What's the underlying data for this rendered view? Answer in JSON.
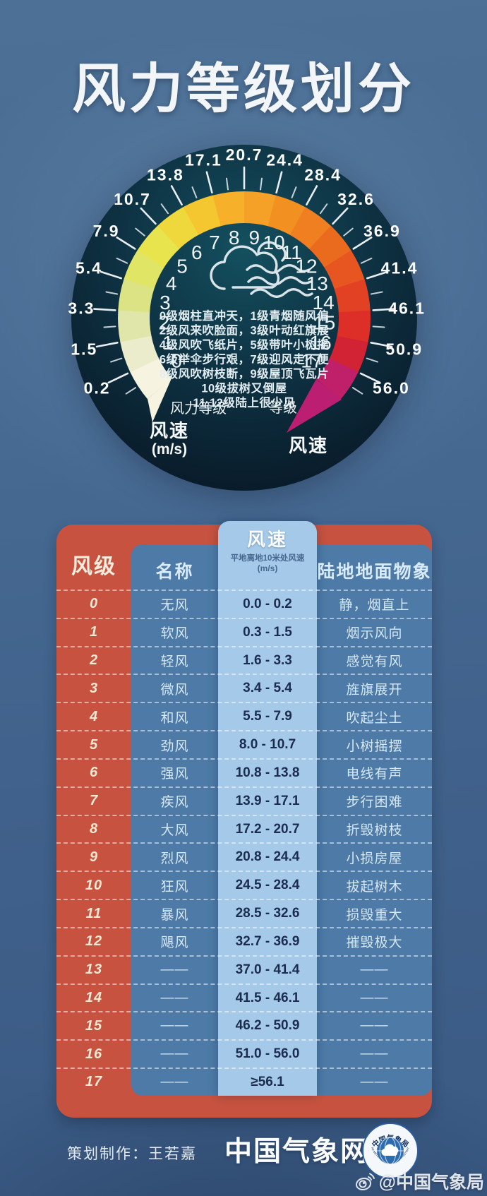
{
  "title": "风力等级划分",
  "gauge": {
    "speed_tick_labels": [
      "0.2",
      "1.5",
      "3.3",
      "5.4",
      "7.9",
      "10.7",
      "13.8",
      "17.1",
      "20.7",
      "24.4",
      "28.4",
      "32.6",
      "36.9",
      "41.4",
      "46.1",
      "50.9",
      "56.0"
    ],
    "level_labels": [
      "0",
      "1",
      "2",
      "3",
      "4",
      "5",
      "6",
      "7",
      "8",
      "9",
      "10",
      "11",
      "12",
      "13",
      "14",
      "15",
      "16",
      "17"
    ],
    "segment_colors": [
      "#f7f3e1",
      "#ebeccc",
      "#e0e5a9",
      "#dce384",
      "#e0e566",
      "#e8e44e",
      "#efd83c",
      "#f4c730",
      "#f6b02a",
      "#f5a026",
      "#f29122",
      "#ef7f20",
      "#eb6b1e",
      "#e75520",
      "#e24124",
      "#dd2f28",
      "#d22335",
      "#c02069"
    ],
    "arrow_color": "#bc1f72",
    "rhyme_lines": [
      "0级烟柱直冲天，1级青烟随风偏",
      "2级风来吹脸面，3级叶动红旗展",
      "4级风吹飞纸片，5级带叶小树摇",
      "6级举伞步行艰，7级迎风走不便",
      "8级风吹树枝断，9级屋顶飞瓦片",
      "10级拔树又倒屋",
      "11,12级陆上很少见"
    ],
    "inner_scale_label": "风力等级",
    "outer_scale_label": "风速",
    "outer_scale_unit": "(m/s)",
    "right_inner_label": "等级",
    "right_outer_label": "风速"
  },
  "table": {
    "header": {
      "level": "风级",
      "name": "名称",
      "speed": "风速",
      "speed_sub": "平地离地10米处风速",
      "speed_unit": "(m/s)",
      "phenomena": "陆地地面物象"
    },
    "rows": [
      {
        "level": "0",
        "name": "无风",
        "speed": "0.0 - 0.2",
        "phenomena": "静，烟直上"
      },
      {
        "level": "1",
        "name": "软风",
        "speed": "0.3 - 1.5",
        "phenomena": "烟示风向"
      },
      {
        "level": "2",
        "name": "轻风",
        "speed": "1.6 - 3.3",
        "phenomena": "感觉有风"
      },
      {
        "level": "3",
        "name": "微风",
        "speed": "3.4 - 5.4",
        "phenomena": "旌旗展开"
      },
      {
        "level": "4",
        "name": "和风",
        "speed": "5.5 - 7.9",
        "phenomena": "吹起尘土"
      },
      {
        "level": "5",
        "name": "劲风",
        "speed": "8.0 - 10.7",
        "phenomena": "小树摇摆"
      },
      {
        "level": "6",
        "name": "强风",
        "speed": "10.8 - 13.8",
        "phenomena": "电线有声"
      },
      {
        "level": "7",
        "name": "疾风",
        "speed": "13.9 - 17.1",
        "phenomena": "步行困难"
      },
      {
        "level": "8",
        "name": "大风",
        "speed": "17.2 - 20.7",
        "phenomena": "折毁树枝"
      },
      {
        "level": "9",
        "name": "烈风",
        "speed": "20.8 - 24.4",
        "phenomena": "小损房屋"
      },
      {
        "level": "10",
        "name": "狂风",
        "speed": "24.5 - 28.4",
        "phenomena": "拔起树木"
      },
      {
        "level": "11",
        "name": "暴风",
        "speed": "28.5 - 32.6",
        "phenomena": "损毁重大"
      },
      {
        "level": "12",
        "name": "飓风",
        "speed": "32.7 - 36.9",
        "phenomena": "摧毁极大"
      },
      {
        "level": "13",
        "name": "——",
        "speed": "37.0 - 41.4",
        "phenomena": "——"
      },
      {
        "level": "14",
        "name": "——",
        "speed": "41.5 - 46.1",
        "phenomena": "——"
      },
      {
        "level": "15",
        "name": "——",
        "speed": "46.2 - 50.9",
        "phenomena": "——"
      },
      {
        "level": "16",
        "name": "——",
        "speed": "51.0 - 56.0",
        "phenomena": "——"
      },
      {
        "level": "17",
        "name": "——",
        "speed": "≥56.1",
        "phenomena": "——"
      }
    ]
  },
  "footer": {
    "credit": "策划制作：王若嘉",
    "brand": "中国气象网",
    "logo_ring_top": "中国气象局",
    "logo_ring_bottom": "CHINA METEOROLOGICAL ADMINISTRATION",
    "watermark": "@中国气象局"
  },
  "chart_data": {
    "type": "table",
    "title": "风力等级划分",
    "columns": [
      "风级",
      "名称",
      "风速 平地离地10米处风速(m/s)",
      "陆地地面物象"
    ],
    "rows": [
      [
        "0",
        "无风",
        "0.0 - 0.2",
        "静，烟直上"
      ],
      [
        "1",
        "软风",
        "0.3 - 1.5",
        "烟示风向"
      ],
      [
        "2",
        "轻风",
        "1.6 - 3.3",
        "感觉有风"
      ],
      [
        "3",
        "微风",
        "3.4 - 5.4",
        "旌旗展开"
      ],
      [
        "4",
        "和风",
        "5.5 - 7.9",
        "吹起尘土"
      ],
      [
        "5",
        "劲风",
        "8.0 - 10.7",
        "小树摇摆"
      ],
      [
        "6",
        "强风",
        "10.8 - 13.8",
        "电线有声"
      ],
      [
        "7",
        "疾风",
        "13.9 - 17.1",
        "步行困难"
      ],
      [
        "8",
        "大风",
        "17.2 - 20.7",
        "折毁树枝"
      ],
      [
        "9",
        "烈风",
        "20.8 - 24.4",
        "小损房屋"
      ],
      [
        "10",
        "狂风",
        "24.5 - 28.4",
        "拔起树木"
      ],
      [
        "11",
        "暴风",
        "28.5 - 32.6",
        "损毁重大"
      ],
      [
        "12",
        "飓风",
        "32.7 - 36.9",
        "摧毁极大"
      ],
      [
        "13",
        "——",
        "37.0 - 41.4",
        "——"
      ],
      [
        "14",
        "——",
        "41.5 - 46.1",
        "——"
      ],
      [
        "15",
        "——",
        "46.2 - 50.9",
        "——"
      ],
      [
        "16",
        "——",
        "51.0 - 56.0",
        "——"
      ],
      [
        "17",
        "——",
        "≥56.1",
        "——"
      ]
    ],
    "gauge_scale": {
      "type": "gauge",
      "levels": [
        0,
        1,
        2,
        3,
        4,
        5,
        6,
        7,
        8,
        9,
        10,
        11,
        12,
        13,
        14,
        15,
        16,
        17
      ],
      "boundary_speeds_mps": [
        0.2,
        1.5,
        3.3,
        5.4,
        7.9,
        10.7,
        13.8,
        17.1,
        20.7,
        24.4,
        28.4,
        32.6,
        36.9,
        41.4,
        46.1,
        50.9,
        56.0
      ],
      "arc_degrees": [
        -130,
        130
      ]
    }
  }
}
